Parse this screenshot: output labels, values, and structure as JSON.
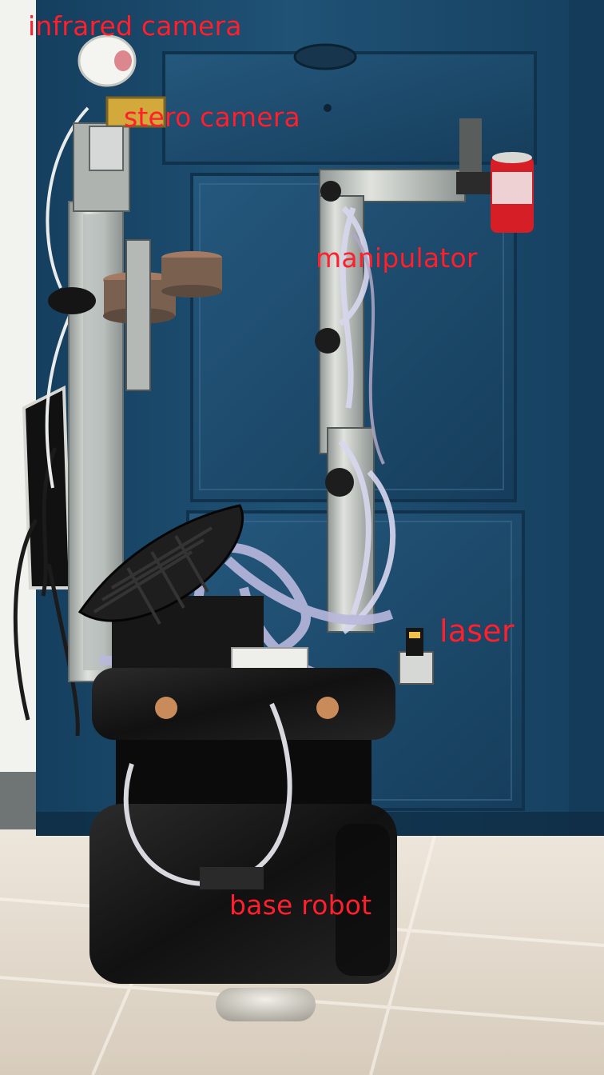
{
  "photo": {
    "labels": {
      "infrared_camera": "infrared camera",
      "stereo_camera": "stero camera",
      "manipulator": "manipulator",
      "laser": "laser",
      "base_robot": "base robot"
    },
    "colors": {
      "label_text": "#ff1f2d",
      "door": "#1f4f72",
      "wall": "#f2f2ee",
      "floor": "#e6dccf",
      "robot_black": "#151515",
      "metal": "#c7c9c7",
      "can": "#d91d24"
    }
  }
}
